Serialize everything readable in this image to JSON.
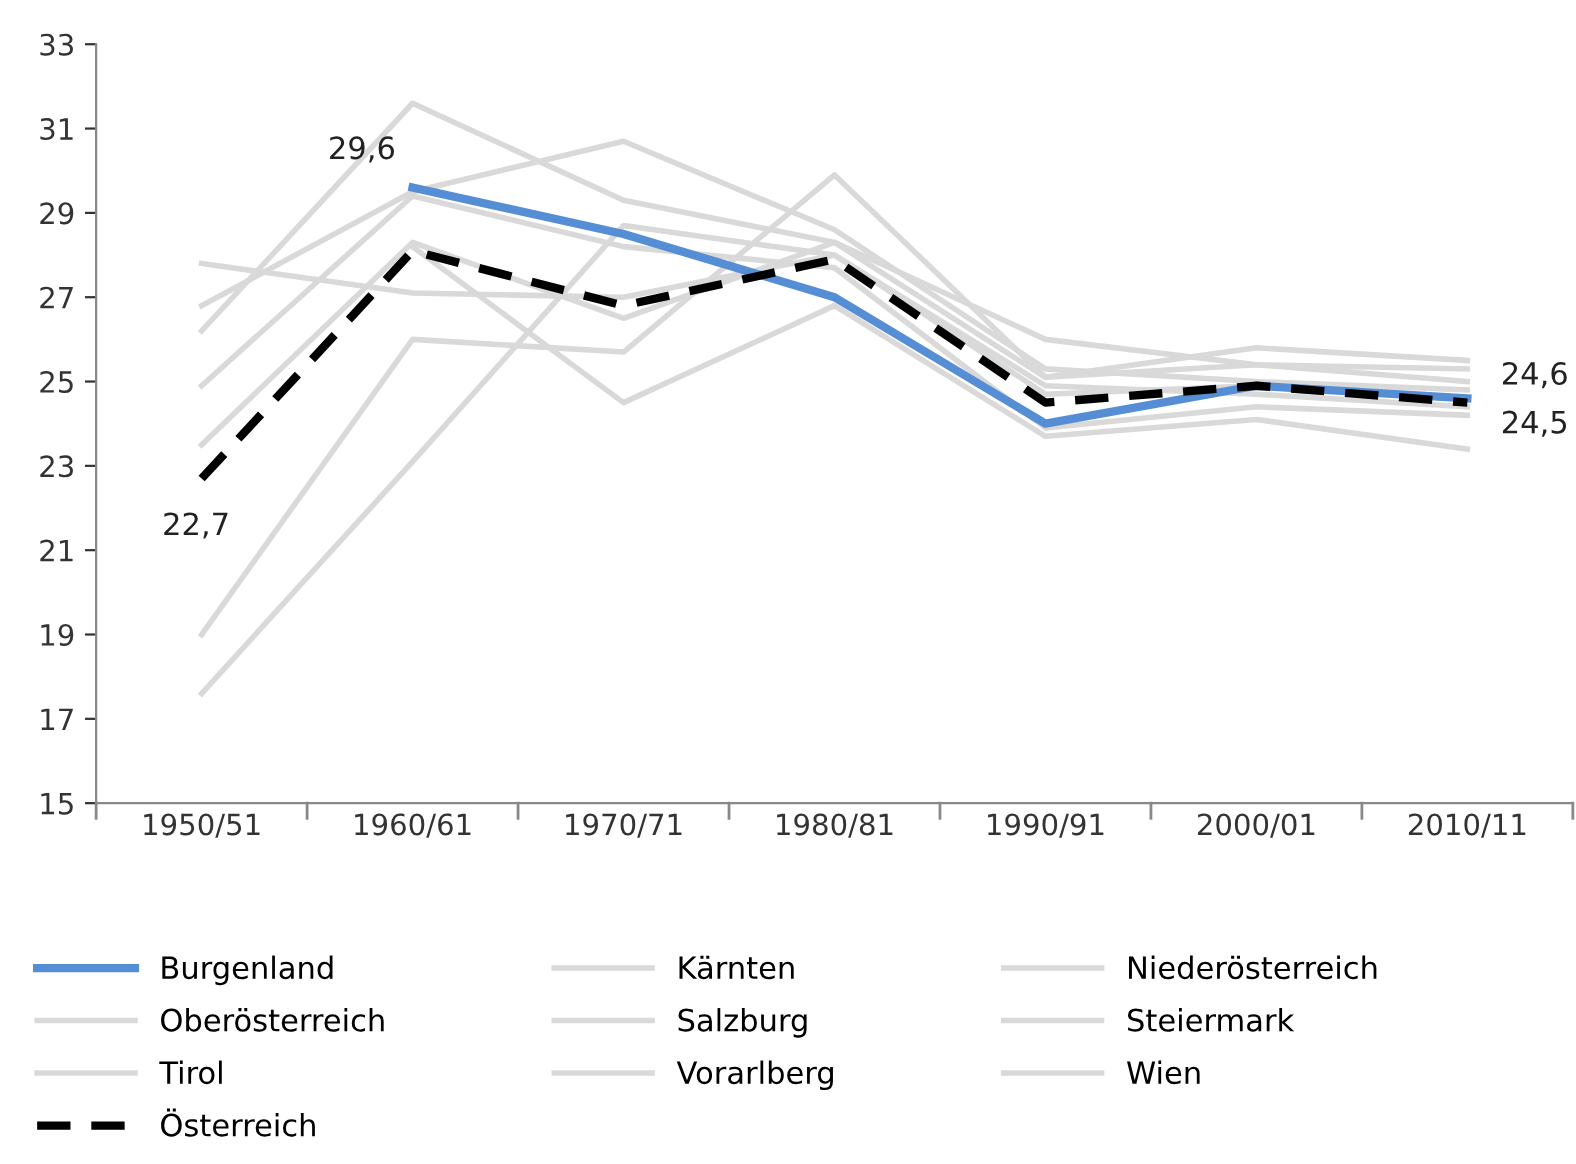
{
  "chart_data": {
    "type": "line",
    "categories": [
      "1950/51",
      "1960/61",
      "1970/71",
      "1980/81",
      "1990/91",
      "2000/01",
      "2010/11"
    ],
    "series": [
      {
        "name": "Burgenland",
        "color": "#558ed5",
        "values": [
          null,
          29.6,
          28.5,
          27.0,
          24.0,
          24.9,
          24.6
        ]
      },
      {
        "name": "Kärnten",
        "color": "#d9d9d9",
        "values": [
          26.2,
          31.6,
          29.3,
          28.3,
          25.1,
          25.4,
          25.0
        ]
      },
      {
        "name": "Niederösterreich",
        "color": "#d9d9d9",
        "values": [
          27.8,
          27.1,
          27.0,
          28.0,
          24.9,
          24.7,
          24.4
        ]
      },
      {
        "name": "Oberösterreich",
        "color": "#d9d9d9",
        "values": [
          26.8,
          29.5,
          30.7,
          28.6,
          25.3,
          25.0,
          24.8
        ]
      },
      {
        "name": "Salzburg",
        "color": "#d9d9d9",
        "values": [
          24.9,
          29.4,
          28.2,
          27.7,
          23.9,
          24.4,
          24.2
        ]
      },
      {
        "name": "Steiermark",
        "color": "#d9d9d9",
        "values": [
          23.5,
          28.3,
          26.5,
          28.3,
          26.0,
          25.4,
          25.3
        ]
      },
      {
        "name": "Tirol",
        "color": "#d9d9d9",
        "values": [
          19.0,
          26.0,
          25.7,
          29.9,
          25.1,
          25.8,
          25.5
        ]
      },
      {
        "name": "Vorarlberg",
        "color": "#d9d9d9",
        "values": [
          17.6,
          23.1,
          28.7,
          28.0,
          24.7,
          24.9,
          24.6
        ]
      },
      {
        "name": "Wien",
        "color": "#d9d9d9",
        "values": [
          null,
          28.2,
          24.5,
          26.8,
          23.7,
          24.1,
          23.4
        ]
      },
      {
        "name": "Österreich",
        "color": "#000000",
        "line_style": "dashed",
        "values": [
          22.7,
          28.1,
          26.8,
          27.9,
          24.5,
          24.9,
          24.5
        ]
      }
    ],
    "ylim": [
      15,
      33
    ],
    "yticks": [
      15,
      17,
      19,
      21,
      23,
      25,
      27,
      29,
      31,
      33
    ],
    "annotations": [
      {
        "text": "29,6",
        "x": "1960/61",
        "y": 29.6
      },
      {
        "text": "22,7",
        "x": "1950/51",
        "y": 22.7
      },
      {
        "text": "24,6",
        "x": "2010/11",
        "y": 24.6
      },
      {
        "text": "24,5",
        "x": "2010/11",
        "y": 24.5
      }
    ],
    "legend": "bottom",
    "grid": false,
    "marker": "none"
  }
}
